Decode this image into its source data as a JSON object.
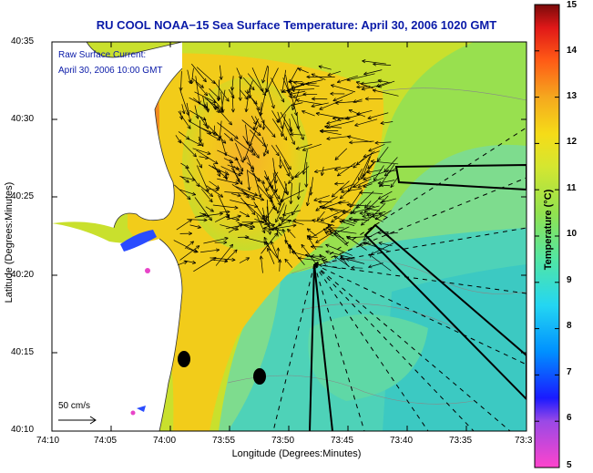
{
  "title": "RU COOL  NOAA−15  Sea Surface Temperature:  April 30, 2006 1020 GMT",
  "annotation": {
    "line1": "Raw Surface Current:",
    "line2": "April 30, 2006 10:00 GMT",
    "scale": "50 cm/s"
  },
  "axes": {
    "xlabel": "Longitude (Degrees:Minutes)",
    "ylabel": "Latitude (Degrees:Minutes)",
    "xticks": [
      "74:10",
      "74:05",
      "74:00",
      "73:55",
      "73:50",
      "73:45",
      "73:40",
      "73:35",
      "73:3"
    ],
    "yticks": [
      "40:35",
      "40:30",
      "40:25",
      "40:20",
      "40:15",
      "40:10"
    ]
  },
  "colorbar": {
    "title": "Temperature (°C)",
    "ticks": [
      "15",
      "14",
      "13",
      "12",
      "11",
      "10",
      "9",
      "8",
      "7",
      "6",
      "5"
    ],
    "min": 5,
    "max": 15
  },
  "colors": {
    "title_blue": "#0a1aa8",
    "warm": "#f08a1f",
    "mid": "#f2cc1a",
    "cool": "#98e04f",
    "cold": "#3fd6b6"
  }
}
